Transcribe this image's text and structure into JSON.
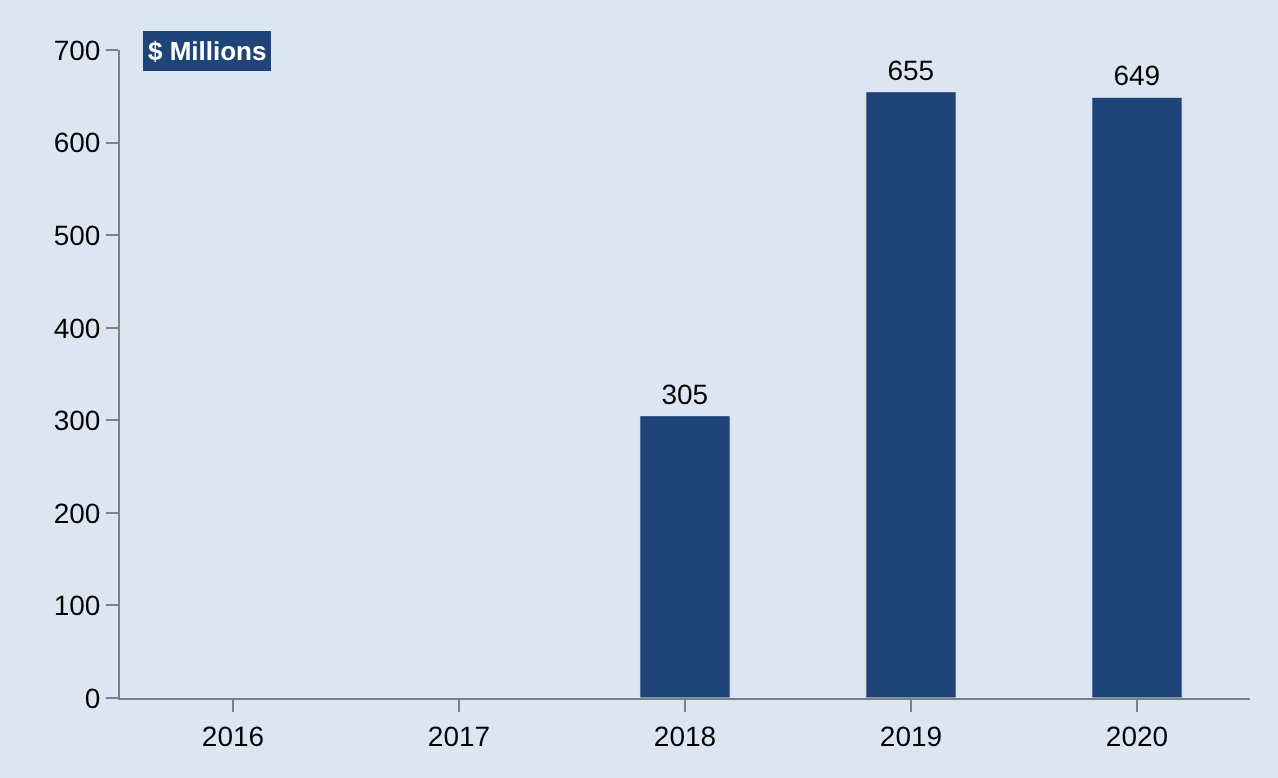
{
  "chart_data": {
    "type": "bar",
    "ylabel": "$ Millions",
    "categories": [
      "2016",
      "2017",
      "2018",
      "2019",
      "2020"
    ],
    "values": [
      null,
      null,
      305,
      655,
      649
    ],
    "color": "#1f4578",
    "ylim": [
      0,
      700
    ],
    "yticks": [
      0,
      100,
      200,
      300,
      400,
      500,
      600,
      700
    ],
    "data_labels": true,
    "grid": false,
    "legend": false
  }
}
